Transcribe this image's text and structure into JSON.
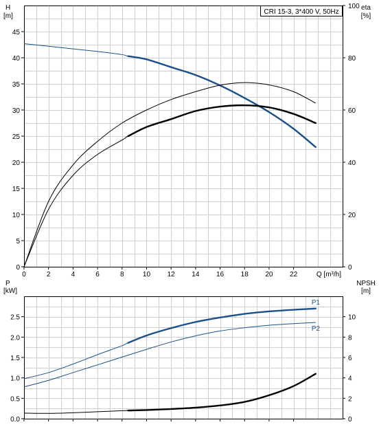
{
  "chart_data": [
    {
      "type": "line",
      "model": "CRI 15-3, 3*400 V, 50Hz",
      "xlabel": "Q [m³/h]",
      "x_ticks": [
        0,
        2,
        4,
        6,
        8,
        10,
        12,
        14,
        16,
        18,
        20,
        22
      ],
      "xlim": [
        0,
        26
      ],
      "ylabel_left": [
        "H",
        "[m]"
      ],
      "ylim_left": [
        0,
        50
      ],
      "y_ticks_left": [
        0,
        5,
        10,
        15,
        20,
        25,
        30,
        35,
        40,
        45
      ],
      "ylabel_right": [
        "eta",
        "[%]"
      ],
      "ylim_right": [
        0,
        100
      ],
      "y_ticks_right": [
        0,
        20,
        40,
        60,
        80,
        100
      ],
      "operating_range": [
        8.5,
        23.8
      ],
      "grid": true,
      "series": [
        {
          "key": "H",
          "axis": "left",
          "color": "#1a4f8a",
          "x": [
            0,
            2,
            4,
            6,
            8,
            8.5,
            10,
            12,
            14,
            16,
            18,
            20,
            22,
            23.8
          ],
          "y": [
            42.7,
            42.2,
            41.7,
            41.2,
            40.6,
            40.3,
            39.7,
            38.2,
            36.7,
            34.7,
            32.3,
            29.6,
            26.4,
            22.9
          ]
        },
        {
          "key": "eta_upper",
          "axis": "right",
          "color": "#000000",
          "x": [
            0,
            2,
            4,
            6,
            8,
            10,
            12,
            14,
            16,
            18,
            20,
            22,
            23.8
          ],
          "y": [
            0,
            25,
            39,
            48,
            55,
            60,
            64,
            67,
            69.5,
            70.5,
            69.6,
            67,
            62.6
          ]
        },
        {
          "key": "eta_lower",
          "axis": "right",
          "color": "#000000",
          "x": [
            0,
            2,
            4,
            6,
            8,
            8.5,
            10,
            12,
            14,
            16,
            18,
            20,
            22,
            23.8
          ],
          "y": [
            0,
            22,
            35,
            43,
            48.5,
            50,
            53.5,
            56.5,
            59.6,
            61.3,
            61.8,
            61,
            58.5,
            55
          ]
        }
      ]
    },
    {
      "type": "line",
      "xlim": [
        0,
        26
      ],
      "x_ticks": [
        0,
        2,
        4,
        6,
        8,
        10,
        12,
        14,
        16,
        18,
        20,
        22
      ],
      "ylabel_left": [
        "P",
        "[kW]"
      ],
      "ylim_left": [
        0,
        3.0
      ],
      "y_ticks_left": [
        "0.0",
        "0.5",
        "1.0",
        "1.5",
        "2.0",
        "2.5"
      ],
      "ylabel_right": [
        "NPSH",
        "[m]"
      ],
      "ylim_right": [
        0,
        12
      ],
      "y_ticks_right": [
        0,
        2,
        4,
        6,
        8,
        10
      ],
      "operating_range": [
        8.5,
        23.8
      ],
      "grid": true,
      "series": [
        {
          "name": "P1",
          "axis": "left",
          "color": "#1a4f8a",
          "x": [
            0,
            2,
            4,
            6,
            8,
            8.5,
            10,
            12,
            14,
            16,
            18,
            20,
            22,
            23.8
          ],
          "y": [
            0.98,
            1.13,
            1.34,
            1.57,
            1.79,
            1.86,
            2.04,
            2.22,
            2.37,
            2.48,
            2.57,
            2.63,
            2.67,
            2.7
          ]
        },
        {
          "name": "P2",
          "axis": "left",
          "color": "#1a4f8a",
          "x": [
            0,
            2,
            4,
            6,
            8,
            10,
            12,
            14,
            16,
            18,
            20,
            22,
            23.8
          ],
          "y": [
            0.78,
            0.94,
            1.13,
            1.32,
            1.51,
            1.7,
            1.88,
            2.03,
            2.15,
            2.23,
            2.29,
            2.33,
            2.36
          ]
        },
        {
          "key": "NPSH",
          "axis": "right",
          "color": "#000000",
          "x": [
            0,
            2,
            4,
            6,
            8,
            8.5,
            10,
            12,
            14,
            16,
            18,
            20,
            22,
            23.8
          ],
          "y": [
            0.55,
            0.52,
            0.58,
            0.68,
            0.78,
            0.8,
            0.85,
            0.95,
            1.08,
            1.3,
            1.65,
            2.3,
            3.2,
            4.4
          ]
        }
      ]
    }
  ]
}
